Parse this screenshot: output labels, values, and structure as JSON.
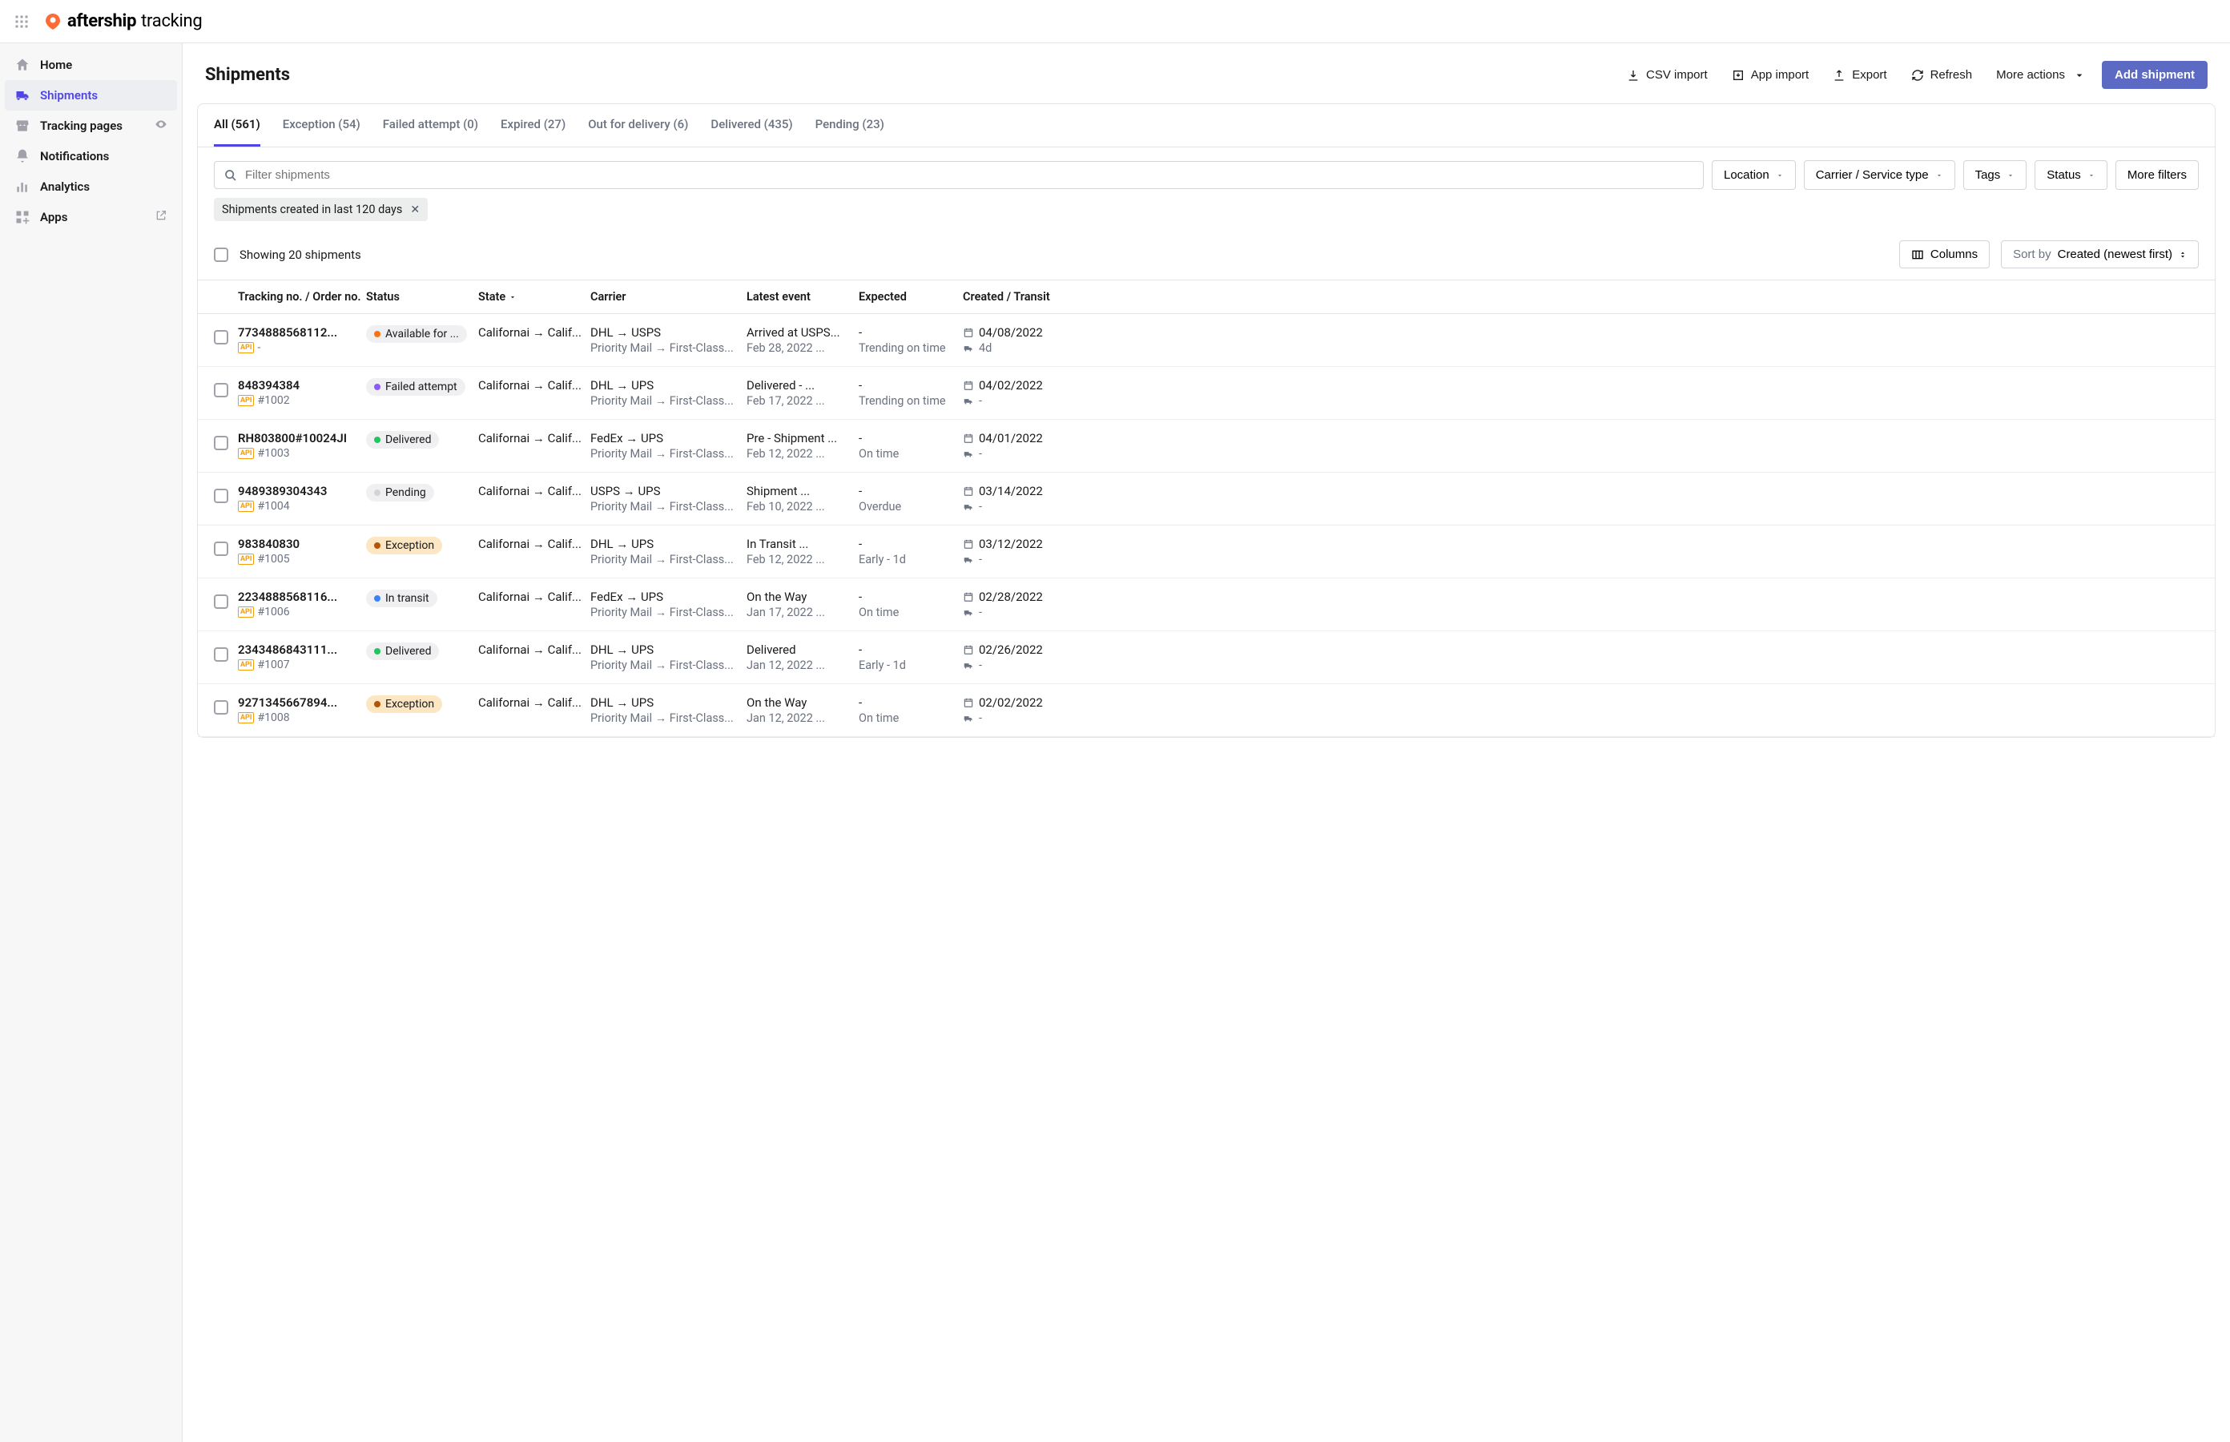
{
  "brand": {
    "name": "aftership",
    "product": "tracking"
  },
  "sidebar": {
    "items": [
      {
        "label": "Home",
        "icon": "home"
      },
      {
        "label": "Shipments",
        "icon": "truck",
        "active": true
      },
      {
        "label": "Tracking pages",
        "icon": "store",
        "trail": "eye"
      },
      {
        "label": "Notifications",
        "icon": "bell"
      },
      {
        "label": "Analytics",
        "icon": "bars"
      },
      {
        "label": "Apps",
        "icon": "apps",
        "trail": "external"
      }
    ]
  },
  "page": {
    "title": "Shipments",
    "actions": {
      "csv_import": "CSV import",
      "app_import": "App import",
      "export": "Export",
      "refresh": "Refresh",
      "more": "More actions",
      "add": "Add shipment"
    }
  },
  "tabs": [
    {
      "label": "All (561)",
      "active": true
    },
    {
      "label": "Exception (54)"
    },
    {
      "label": "Failed attempt (0)"
    },
    {
      "label": "Expired (27)"
    },
    {
      "label": "Out for delivery (6)"
    },
    {
      "label": "Delivered (435)"
    },
    {
      "label": "Pending (23)"
    }
  ],
  "filters": {
    "search_placeholder": "Filter shipments",
    "location": "Location",
    "carrier": "Carrier / Service type",
    "tags": "Tags",
    "status": "Status",
    "more": "More filters"
  },
  "chip": {
    "label": "Shipments created in last 120 days"
  },
  "toolbar": {
    "showing": "Showing 20 shipments",
    "columns": "Columns",
    "sort_prefix": "Sort by ",
    "sort_value": "Created (newest first)"
  },
  "columns": {
    "tracking": "Tracking no. / Order no.",
    "status": "Status",
    "state": "State",
    "carrier": "Carrier",
    "event": "Latest event",
    "expected": "Expected",
    "created": "Created / Transit"
  },
  "status_colors": {
    "available": "#f97316",
    "failed": "#8b5cf6",
    "delivered": "#22c55e",
    "pending": "#d4d4d8",
    "exception": "#b45309",
    "intransit": "#3b82f6"
  },
  "rows": [
    {
      "tracking": "7734888568112...",
      "order": "-",
      "status": {
        "label": "Available for ...",
        "color": "available",
        "pill": "default"
      },
      "state": "Californai → Calif...",
      "carrier": "DHL → USPS",
      "service": "Priority Mail → First-Class...",
      "event": "Arrived at USPS...",
      "event_date": "Feb 28, 2022 ...",
      "expected": "-",
      "expected_note": "Trending on time",
      "created": "04/08/2022",
      "transit": "4d"
    },
    {
      "tracking": "848394384",
      "order": "#1002",
      "status": {
        "label": "Failed attempt",
        "color": "failed",
        "pill": "default"
      },
      "state": "Californai → Calif...",
      "carrier": "DHL → UPS",
      "service": "Priority Mail → First-Class...",
      "event": "Delivered - ...",
      "event_date": "Feb 17, 2022 ...",
      "expected": "-",
      "expected_note": "Trending on time",
      "created": "04/02/2022",
      "transit": "-"
    },
    {
      "tracking": "RH803800#10024JI",
      "order": "#1003",
      "status": {
        "label": "Delivered",
        "color": "delivered",
        "pill": "default"
      },
      "state": "Californai → Calif...",
      "carrier": "FedEx → UPS",
      "service": "Priority Mail → First-Class...",
      "event": "Pre - Shipment ...",
      "event_date": "Feb 12, 2022 ...",
      "expected": "-",
      "expected_note": "On time",
      "created": "04/01/2022",
      "transit": "-"
    },
    {
      "tracking": "9489389304343",
      "order": "#1004",
      "status": {
        "label": "Pending",
        "color": "pending",
        "pill": "default"
      },
      "state": "Californai → Calif...",
      "carrier": "USPS → UPS",
      "service": "Priority Mail → First-Class...",
      "event": "Shipment ...",
      "event_date": "Feb 10, 2022 ...",
      "expected": "-",
      "expected_note": "Overdue",
      "created": "03/14/2022",
      "transit": "-"
    },
    {
      "tracking": "983840830",
      "order": "#1005",
      "status": {
        "label": "Exception",
        "color": "exception",
        "pill": "exception"
      },
      "state": "Californai → Calif...",
      "carrier": "DHL → UPS",
      "service": "Priority Mail → First-Class...",
      "event": "In Transit ...",
      "event_date": "Feb 12, 2022 ...",
      "expected": "-",
      "expected_note": "Early - 1d",
      "created": "03/12/2022",
      "transit": "-"
    },
    {
      "tracking": "2234888568116...",
      "order": "#1006",
      "status": {
        "label": "In transit",
        "color": "intransit",
        "pill": "default"
      },
      "state": "Californai → Calif...",
      "carrier": "FedEx → UPS",
      "service": "Priority Mail → First-Class...",
      "event": "On the Way",
      "event_date": "Jan 17, 2022 ...",
      "expected": "-",
      "expected_note": "On time",
      "created": "02/28/2022",
      "transit": "-"
    },
    {
      "tracking": "2343486843111...",
      "order": "#1007",
      "status": {
        "label": "Delivered",
        "color": "delivered",
        "pill": "default"
      },
      "state": "Californai → Calif...",
      "carrier": "DHL → UPS",
      "service": "Priority Mail → First-Class...",
      "event": "Delivered",
      "event_date": "Jan 12, 2022 ...",
      "expected": "-",
      "expected_note": "Early - 1d",
      "created": "02/26/2022",
      "transit": "-"
    },
    {
      "tracking": "9271345667894...",
      "order": "#1008",
      "status": {
        "label": "Exception",
        "color": "exception",
        "pill": "exception"
      },
      "state": "Californai → Calif...",
      "carrier": "DHL → UPS",
      "service": "Priority Mail → First-Class...",
      "event": "On the Way",
      "event_date": "Jan 12, 2022 ...",
      "expected": "-",
      "expected_note": "On time",
      "created": "02/02/2022",
      "transit": "-"
    }
  ]
}
